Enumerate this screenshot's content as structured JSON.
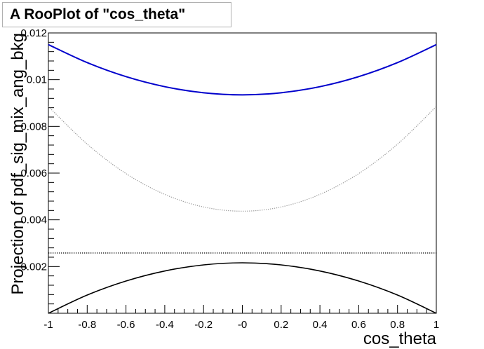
{
  "title": "A RooPlot of \"cos_theta\"",
  "chart_data": {
    "type": "line",
    "title": "A RooPlot of \"cos_theta\"",
    "xlabel": "cos_theta",
    "ylabel": "Projection of pdf_sig_mix_ang_bkg",
    "xlim": [
      -1,
      1
    ],
    "ylim": [
      0,
      0.012
    ],
    "x_ticks": [
      -1,
      -0.8,
      -0.6,
      -0.4,
      -0.2,
      0,
      0.2,
      0.4,
      0.6,
      0.8,
      1
    ],
    "x_tick_labels": [
      "-1",
      "-0.8",
      "-0.6",
      "-0.4",
      "-0.2",
      "-0",
      "0.2",
      "0.4",
      "0.6",
      "0.8",
      "1"
    ],
    "y_ticks": [
      0.002,
      0.004,
      0.006,
      0.008,
      0.01,
      0.012
    ],
    "y_tick_labels": [
      "0.002",
      "0.004",
      "0.006",
      "0.008",
      "0.01",
      "0.012"
    ],
    "grid": false,
    "series": [
      {
        "color": "#0000cc",
        "style": "solid",
        "width": 2,
        "x": [
          -1,
          -0.8,
          -0.6,
          -0.4,
          -0.2,
          0,
          0.2,
          0.4,
          0.6,
          0.8,
          1
        ],
        "y": [
          0.0115,
          0.01073,
          0.01013,
          0.0097,
          0.00944,
          0.00935,
          0.00944,
          0.0097,
          0.01013,
          0.01073,
          0.0115
        ]
      },
      {
        "color": "#9a9a9a",
        "style": "dotted",
        "width": 1.2,
        "x": [
          -1,
          -0.8,
          -0.6,
          -0.4,
          -0.2,
          0,
          0.2,
          0.4,
          0.6,
          0.8,
          1
        ],
        "y": [
          0.00885,
          0.00724,
          0.00598,
          0.00509,
          0.00455,
          0.00437,
          0.00455,
          0.00509,
          0.00598,
          0.00724,
          0.00885
        ]
      },
      {
        "color": "#000000",
        "style": "dotted",
        "width": 1.3,
        "x": [
          -1,
          1
        ],
        "y": [
          0.00258,
          0.00258
        ]
      },
      {
        "color": "#000000",
        "style": "solid",
        "width": 1.6,
        "x": [
          -1,
          -0.8,
          -0.6,
          -0.4,
          -0.2,
          0,
          0.2,
          0.4,
          0.6,
          0.8,
          1
        ],
        "y": [
          0.0,
          0.00078,
          0.00138,
          0.00181,
          0.00207,
          0.00216,
          0.00207,
          0.00181,
          0.00138,
          0.00078,
          0.0
        ]
      }
    ]
  }
}
